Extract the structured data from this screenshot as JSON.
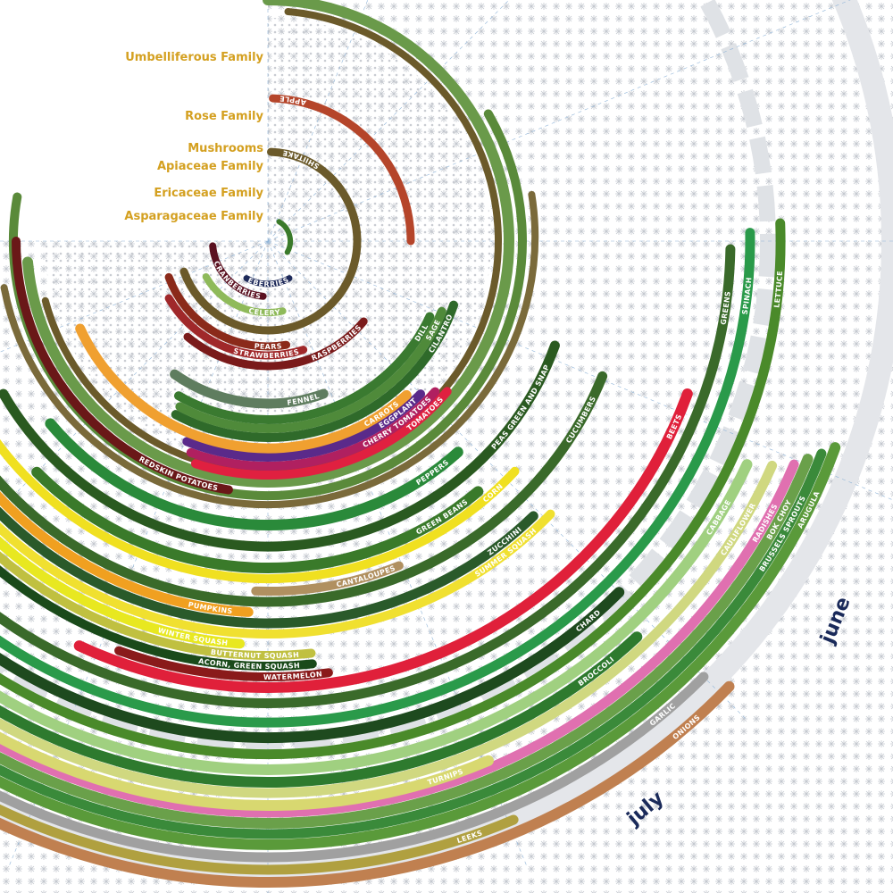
{
  "family_labels": [
    "Umbelliferous Family",
    "Rose Family",
    "Mushrooms",
    "Apiaceae Family",
    "Ericaceae Family",
    "Asparagaceae Family"
  ],
  "crops": [
    {
      "label": "APPLE",
      "color": "#b5452a"
    },
    {
      "label": "SHIITAKE",
      "color": "#6b5a2a"
    },
    {
      "label": "CRANBERRIES",
      "color": "#5a1020"
    },
    {
      "label": "BLUEBERRIES",
      "color": "#1e2a5a"
    },
    {
      "label": "CELERY",
      "color": "#8fba5a"
    },
    {
      "label": "PEARS",
      "color": "#8b2a1a"
    },
    {
      "label": "STRAWBERRIES",
      "color": "#a0282a"
    },
    {
      "label": "RASPBERRIES",
      "color": "#7a1a1a"
    },
    {
      "label": "FENNEL",
      "color": "#5f7d5f"
    },
    {
      "label": "DILL",
      "color": "#3a7a30"
    },
    {
      "label": "SAGE",
      "color": "#4f8a3a"
    },
    {
      "label": "CILANTRO",
      "color": "#2f6a2a"
    },
    {
      "label": "CARROTS",
      "color": "#f0a030"
    },
    {
      "label": "EGGPLANT",
      "color": "#5a2a8a"
    },
    {
      "label": "CHERRY TOMATOES",
      "color": "#b02060"
    },
    {
      "label": "TOMATOES",
      "color": "#e02040"
    },
    {
      "label": "REDSKIN POTATOES",
      "color": "#6a1818"
    },
    {
      "label": "PEPPERS",
      "color": "#2a8a3a"
    },
    {
      "label": "PEAS GREEN AND SNAP",
      "color": "#2a5a20"
    },
    {
      "label": "GREEN BEANS",
      "color": "#3a7a2a"
    },
    {
      "label": "CORN",
      "color": "#f0e020"
    },
    {
      "label": "CANTALOUPES",
      "color": "#b09060"
    },
    {
      "label": "CUCUMBERS",
      "color": "#3a6a2a"
    },
    {
      "label": "ZUCCHINI",
      "color": "#2a5a2a"
    },
    {
      "label": "PUMPKINS",
      "color": "#f0a020"
    },
    {
      "label": "SUMMER SQUASH",
      "color": "#f0e030"
    },
    {
      "label": "WINTER SQUASH",
      "color": "#e8e820"
    },
    {
      "label": "BUTTERNUT SQUASH",
      "color": "#c0c040"
    },
    {
      "label": "ACORN, GREEN SQUASH",
      "color": "#1a4a1a"
    },
    {
      "label": "WATERMELON",
      "color": "#8a1a1a"
    },
    {
      "label": "BEETS",
      "color": "#e0203a"
    },
    {
      "label": "GREENS",
      "color": "#3a6a2a"
    },
    {
      "label": "SPINACH",
      "color": "#2a9a4a"
    },
    {
      "label": "CHARD",
      "color": "#1e4a1e"
    },
    {
      "label": "LETTUCE",
      "color": "#4a8a2a"
    },
    {
      "label": "CABBAGE",
      "color": "#a0d080"
    },
    {
      "label": "BROCCOLI",
      "color": "#2e7a2e"
    },
    {
      "label": "CAULIFLOWER",
      "color": "#d0d880"
    },
    {
      "label": "TURNIPS",
      "color": "#d8d870"
    },
    {
      "label": "RADISHES",
      "color": "#e070b0"
    },
    {
      "label": "BOK CHOY",
      "color": "#6aa04a"
    },
    {
      "label": "BRUSSELS SPROUTS",
      "color": "#3a8a3a"
    },
    {
      "label": "ARUGULA",
      "color": "#5a9a3a"
    },
    {
      "label": "GARLIC",
      "color": "#a0a0a0"
    },
    {
      "label": "LEEKS",
      "color": "#b0a040"
    },
    {
      "label": "ONIONS",
      "color": "#c08050"
    }
  ],
  "months": [
    "june",
    "july"
  ]
}
